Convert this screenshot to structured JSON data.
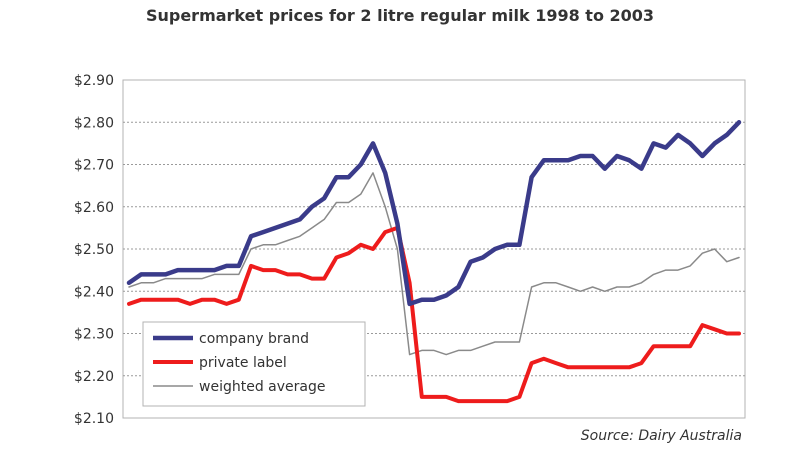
{
  "chart_data": {
    "type": "line",
    "title": "Supermarket prices for 2 litre regular milk 1998 to 2003",
    "source": "Source: Dairy Australia",
    "ylim": [
      2.1,
      2.9
    ],
    "yticks": [
      "$2.90",
      "$2.80",
      "$2.70",
      "$2.60",
      "$2.50",
      "$2.40",
      "$2.30",
      "$2.20",
      "$2.10"
    ],
    "ytick_values": [
      2.9,
      2.8,
      2.7,
      2.6,
      2.5,
      2.4,
      2.3,
      2.2,
      2.1
    ],
    "grid": true,
    "legend_position": "bottom-left",
    "xlim": [
      0,
      100
    ],
    "series": [
      {
        "name": "company brand",
        "color": "#3a3b8a",
        "x": [
          0,
          2,
          4,
          6,
          8,
          10,
          12,
          14,
          16,
          18,
          20,
          22,
          24,
          26,
          28,
          30,
          32,
          34,
          36,
          38,
          40,
          42,
          44,
          46,
          48,
          50,
          52,
          54,
          56,
          58,
          60,
          62,
          64,
          66,
          68,
          70,
          72,
          74,
          76,
          78,
          80,
          82,
          84,
          86,
          88,
          90,
          92,
          94,
          96,
          98,
          100
        ],
        "values": [
          2.42,
          2.44,
          2.44,
          2.44,
          2.45,
          2.45,
          2.45,
          2.45,
          2.46,
          2.46,
          2.53,
          2.54,
          2.55,
          2.56,
          2.57,
          2.6,
          2.62,
          2.67,
          2.67,
          2.7,
          2.75,
          2.68,
          2.56,
          2.37,
          2.38,
          2.38,
          2.39,
          2.41,
          2.47,
          2.48,
          2.5,
          2.51,
          2.51,
          2.67,
          2.71,
          2.71,
          2.71,
          2.72,
          2.72,
          2.69,
          2.72,
          2.71,
          2.69,
          2.75,
          2.74,
          2.77,
          2.75,
          2.72,
          2.75,
          2.77,
          2.8
        ]
      },
      {
        "name": "private label",
        "color": "#ee1c1c",
        "x": [
          0,
          2,
          4,
          6,
          8,
          10,
          12,
          14,
          16,
          18,
          20,
          22,
          24,
          26,
          28,
          30,
          32,
          34,
          36,
          38,
          40,
          42,
          44,
          46,
          48,
          50,
          52,
          54,
          56,
          58,
          60,
          62,
          64,
          66,
          68,
          70,
          72,
          74,
          76,
          78,
          80,
          82,
          84,
          86,
          88,
          90,
          92,
          94,
          96,
          98,
          100
        ],
        "values": [
          2.37,
          2.38,
          2.38,
          2.38,
          2.38,
          2.37,
          2.38,
          2.38,
          2.37,
          2.38,
          2.46,
          2.45,
          2.45,
          2.44,
          2.44,
          2.43,
          2.43,
          2.48,
          2.49,
          2.51,
          2.5,
          2.54,
          2.55,
          2.42,
          2.15,
          2.15,
          2.15,
          2.14,
          2.14,
          2.14,
          2.14,
          2.14,
          2.15,
          2.23,
          2.24,
          2.23,
          2.22,
          2.22,
          2.22,
          2.22,
          2.22,
          2.22,
          2.23,
          2.27,
          2.27,
          2.27,
          2.27,
          2.32,
          2.31,
          2.3,
          2.3
        ]
      },
      {
        "name": "weighted average",
        "color": "#8a8a8a",
        "x": [
          0,
          2,
          4,
          6,
          8,
          10,
          12,
          14,
          16,
          18,
          20,
          22,
          24,
          26,
          28,
          30,
          32,
          34,
          36,
          38,
          40,
          42,
          44,
          46,
          48,
          50,
          52,
          54,
          56,
          58,
          60,
          62,
          64,
          66,
          68,
          70,
          72,
          74,
          76,
          78,
          80,
          82,
          84,
          86,
          88,
          90,
          92,
          94,
          96,
          98,
          100
        ],
        "values": [
          2.41,
          2.42,
          2.42,
          2.43,
          2.43,
          2.43,
          2.43,
          2.44,
          2.44,
          2.44,
          2.5,
          2.51,
          2.51,
          2.52,
          2.53,
          2.55,
          2.57,
          2.61,
          2.61,
          2.63,
          2.68,
          2.6,
          2.5,
          2.25,
          2.26,
          2.26,
          2.25,
          2.26,
          2.26,
          2.27,
          2.28,
          2.28,
          2.28,
          2.41,
          2.42,
          2.42,
          2.41,
          2.4,
          2.41,
          2.4,
          2.41,
          2.41,
          2.42,
          2.44,
          2.45,
          2.45,
          2.46,
          2.49,
          2.5,
          2.47,
          2.48
        ]
      }
    ]
  }
}
